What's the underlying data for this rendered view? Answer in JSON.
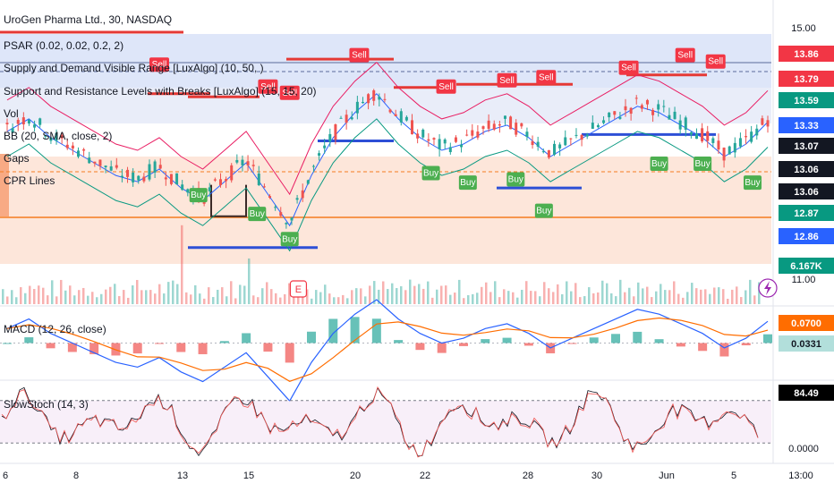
{
  "chart_data": {
    "type": "candlestick",
    "title": "UroGen Pharma Ltd., 30, NASDAQ",
    "indicator_labels": [
      "PSAR (0.02, 0.02, 0.2, 2)",
      "Supply and Demand Visible Range [LuxAlgo] (10, 50, )",
      "Support and Resistance Levels with Breaks [LuxAlgo] (15, 15, 20)",
      "Vol",
      "BB (20, SMA, close, 2)",
      "Gaps",
      "CPR Lines"
    ],
    "x_ticks": [
      "6",
      "8",
      "13",
      "15",
      "20",
      "22",
      "28",
      "30",
      "Jun",
      "5",
      "13:00"
    ],
    "price_axis": {
      "ticks": [
        "15.00",
        "11.00"
      ],
      "ylim": [
        10.6,
        15.3
      ]
    },
    "price_tags": [
      {
        "value": "13.86",
        "color": "#f23645"
      },
      {
        "value": "13.79",
        "color": "#f23645"
      },
      {
        "value": "13.59",
        "color": "#089981"
      },
      {
        "value": "13.33",
        "color": "#2962ff"
      },
      {
        "value": "13.07",
        "color": "#131722"
      },
      {
        "value": "13.06",
        "color": "#131722"
      },
      {
        "value": "13.06",
        "color": "#131722"
      },
      {
        "value": "12.87",
        "color": "#089981"
      },
      {
        "value": "12.86",
        "color": "#2962ff"
      },
      {
        "value": "6.167K",
        "color": "#089981"
      }
    ],
    "signals": {
      "sell_label": "Sell",
      "buy_label": "Buy",
      "earnings_label": "E",
      "sell_marks": [
        {
          "x": 7,
          "price": 14.3
        },
        {
          "x": 12,
          "price": 13.95
        },
        {
          "x": 13,
          "price": 13.85
        },
        {
          "x": 16.2,
          "price": 14.45
        },
        {
          "x": 20.2,
          "price": 13.95
        },
        {
          "x": 23,
          "price": 14.05
        },
        {
          "x": 24.8,
          "price": 14.1
        },
        {
          "x": 28.6,
          "price": 14.25
        },
        {
          "x": 31.2,
          "price": 14.45
        },
        {
          "x": 32.6,
          "price": 14.35
        }
      ],
      "buy_marks": [
        {
          "x": 8.8,
          "price": 12.45
        },
        {
          "x": 11.5,
          "price": 12.15
        },
        {
          "x": 13,
          "price": 11.75
        },
        {
          "x": 19.5,
          "price": 12.8
        },
        {
          "x": 21.2,
          "price": 12.65
        },
        {
          "x": 23.4,
          "price": 12.7
        },
        {
          "x": 24.7,
          "price": 12.2
        },
        {
          "x": 30,
          "price": 12.95
        },
        {
          "x": 32,
          "price": 12.95
        },
        {
          "x": 34.3,
          "price": 12.65
        }
      ],
      "earnings_x": 13.4
    },
    "macd": {
      "label": "MACD (12, 26, close)",
      "tags": [
        {
          "value": "0.0700",
          "color": "#ff6d00"
        },
        {
          "value": "0.0331",
          "color": "#b2dfdb"
        }
      ],
      "ylim": [
        -0.2,
        0.2
      ]
    },
    "stoch": {
      "label": "SlowStoch (14, 3)",
      "tags": [
        {
          "value": "84.49",
          "color": "#000000"
        }
      ],
      "ticks": [
        "0.0000"
      ],
      "ylim": [
        -5,
        105
      ]
    }
  }
}
